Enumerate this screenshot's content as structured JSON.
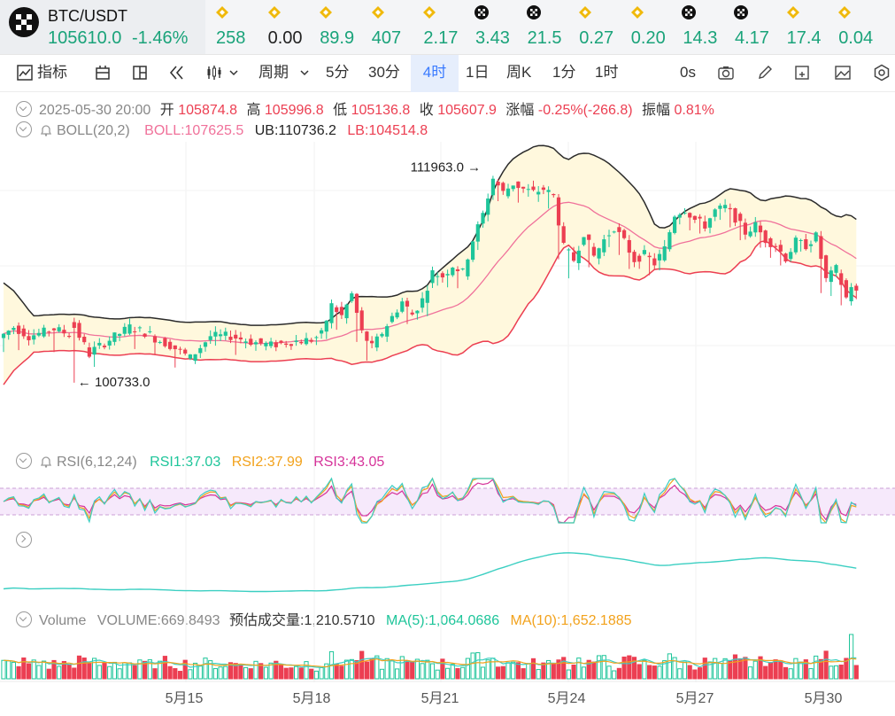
{
  "pair": {
    "name": "BTC/USDT",
    "price": "105610.0",
    "change": "-1.46%"
  },
  "tickers": [
    {
      "value": "258",
      "icon": "bnb-icon",
      "color": "#1aa37a"
    },
    {
      "value": "0.00",
      "icon": "bnb-icon",
      "color": "#222222"
    },
    {
      "value": "89.9",
      "icon": "bnb-icon",
      "color": "#1aa37a"
    },
    {
      "value": "407",
      "icon": "bnb-icon",
      "color": "#1aa37a"
    },
    {
      "value": "2.17",
      "icon": "bnb-icon",
      "color": "#1aa37a"
    },
    {
      "value": "3.43",
      "icon": "okx-icon",
      "color": "#1aa37a"
    },
    {
      "value": "21.5",
      "icon": "okx-icon",
      "color": "#1aa37a"
    },
    {
      "value": "0.27",
      "icon": "bnb-icon",
      "color": "#1aa37a"
    },
    {
      "value": "0.20",
      "icon": "bnb-icon",
      "color": "#1aa37a"
    },
    {
      "value": "14.3",
      "icon": "okx-icon",
      "color": "#1aa37a"
    },
    {
      "value": "4.17",
      "icon": "okx-icon",
      "color": "#1aa37a"
    },
    {
      "value": "17.4",
      "icon": "bnb-icon",
      "color": "#1aa37a"
    },
    {
      "value": "0.04",
      "icon": "bnb-icon",
      "color": "#1aa37a"
    }
  ],
  "toolbar": {
    "indicators": "指标",
    "period": "周期",
    "timeframes": [
      "5分",
      "30分",
      "4时",
      "1日",
      "周K",
      "1分",
      "1时"
    ],
    "active": "4时",
    "countdown": "0s"
  },
  "ohlc": {
    "date": "2025-05-30 20:00",
    "open_label": "开",
    "open": "105874.8",
    "high_label": "高",
    "high": "105996.8",
    "low_label": "低",
    "low": "105136.8",
    "close_label": "收",
    "close": "105607.9",
    "change_label": "涨幅",
    "change": "-0.25%(-266.8)",
    "amp_label": "振幅",
    "amp": "0.81%"
  },
  "boll": {
    "name": "BOLL(20,2)",
    "mid": "BOLL:107625.5",
    "ub": "UB:110736.2",
    "lb": "LB:104514.8"
  },
  "rsi": {
    "name": "RSI(6,12,24)",
    "r1": "RSI1:37.03",
    "r2": "RSI2:37.99",
    "r3": "RSI3:43.05"
  },
  "volume": {
    "name": "Volume",
    "vol": "VOLUME:669.8493",
    "est": "预估成交量:1,210.5710",
    "ma5": "MA(5):1,064.0686",
    "ma10": "MA(10):1,652.1885"
  },
  "colors": {
    "up": "#1ec59a",
    "down": "#ec3f52",
    "mid": "#f0719a",
    "band": "#2b2b2b",
    "fill": "#fff8dd",
    "rsi1": "#3bcfc2",
    "rsi2": "#f2a21c",
    "rsi3": "#d6339a",
    "accent": "#3a7bff"
  },
  "chart_data": {
    "type": "candlestick",
    "x_labels": [
      "5月15",
      "5月18",
      "5月21",
      "5月24",
      "5月27",
      "5月30"
    ],
    "annotations": [
      {
        "text": "111963.0",
        "value": 111963.0
      },
      {
        "text": "100733.0",
        "value": 100733.0
      }
    ],
    "anchors": [
      [
        0,
        103000,
        103600,
        102300
      ],
      [
        3,
        103600,
        103100,
        102400
      ],
      [
        6,
        103100,
        103400,
        102700
      ],
      [
        10,
        103600,
        103200,
        102500
      ],
      [
        14,
        104100,
        102100,
        100733
      ],
      [
        18,
        102200,
        102900,
        101700
      ],
      [
        22,
        102900,
        103600,
        102700
      ],
      [
        26,
        103600,
        103200,
        102600
      ],
      [
        30,
        103100,
        102600,
        102200
      ],
      [
        34,
        102600,
        101900,
        101600
      ],
      [
        38,
        101900,
        103100,
        101800
      ],
      [
        42,
        103100,
        103100,
        102700
      ],
      [
        46,
        103100,
        102800,
        102300
      ],
      [
        50,
        102800,
        102600,
        102300
      ],
      [
        54,
        102600,
        102800,
        102400
      ],
      [
        58,
        102800,
        102900,
        102600
      ],
      [
        62,
        102900,
        103200,
        102800
      ],
      [
        64,
        103200,
        104800,
        103000
      ],
      [
        66,
        104800,
        104200,
        103500
      ],
      [
        68,
        104200,
        105400,
        104000
      ],
      [
        70,
        105400,
        103300,
        102900
      ],
      [
        72,
        103300,
        102500,
        101800
      ],
      [
        74,
        102500,
        103300,
        102300
      ],
      [
        76,
        103300,
        105000,
        103200
      ],
      [
        80,
        105000,
        104300,
        103800
      ],
      [
        82,
        104300,
        105100,
        104100
      ],
      [
        84,
        105100,
        106600,
        104500
      ],
      [
        86,
        106600,
        106400,
        105900
      ],
      [
        88,
        106400,
        107000,
        106000
      ],
      [
        90,
        107000,
        106600,
        105900
      ],
      [
        92,
        106600,
        108400,
        106300
      ],
      [
        94,
        108400,
        109800,
        108000
      ],
      [
        96,
        109800,
        111800,
        109500
      ],
      [
        98,
        111800,
        111000,
        110600
      ],
      [
        100,
        111000,
        111500,
        110700
      ],
      [
        102,
        111500,
        111200,
        110600
      ],
      [
        104,
        111200,
        111000,
        110800
      ],
      [
        106,
        111000,
        111200,
        110700
      ],
      [
        108,
        111200,
        110800,
        110300
      ],
      [
        110,
        110800,
        108000,
        107400
      ],
      [
        112,
        108000,
        107300,
        106500
      ],
      [
        114,
        107300,
        108800,
        107000
      ],
      [
        116,
        108800,
        107500,
        106900
      ],
      [
        118,
        107500,
        108400,
        107200
      ],
      [
        120,
        108400,
        109100,
        108200
      ],
      [
        122,
        109100,
        108300,
        107800
      ],
      [
        124,
        108300,
        107300,
        106900
      ],
      [
        126,
        107300,
        107600,
        106900
      ],
      [
        128,
        107600,
        107100,
        106700
      ],
      [
        130,
        107100,
        107900,
        106900
      ],
      [
        132,
        107900,
        109800,
        107800
      ],
      [
        134,
        109800,
        110100,
        109400
      ],
      [
        136,
        110100,
        109500,
        109100
      ],
      [
        138,
        109500,
        109200,
        108900
      ],
      [
        140,
        109200,
        110000,
        108800
      ],
      [
        142,
        110000,
        110200,
        109700
      ],
      [
        144,
        110200,
        109600,
        109300
      ],
      [
        146,
        109600,
        108800,
        108400
      ],
      [
        148,
        108800,
        109200,
        108600
      ],
      [
        150,
        109200,
        108400,
        108000
      ],
      [
        152,
        108400,
        108100,
        107600
      ],
      [
        154,
        108100,
        107400,
        107100
      ],
      [
        156,
        107400,
        108300,
        107200
      ],
      [
        158,
        108300,
        108100,
        107800
      ],
      [
        160,
        108100,
        108600,
        107900
      ],
      [
        162,
        108600,
        106200,
        105700
      ],
      [
        164,
        106200,
        106800,
        105600
      ],
      [
        166,
        106800,
        105200,
        104900
      ],
      [
        168,
        105200,
        105900,
        105000
      ],
      [
        169,
        105875,
        105608,
        105137
      ]
    ],
    "price_min": 97800,
    "price_max": 113800
  }
}
